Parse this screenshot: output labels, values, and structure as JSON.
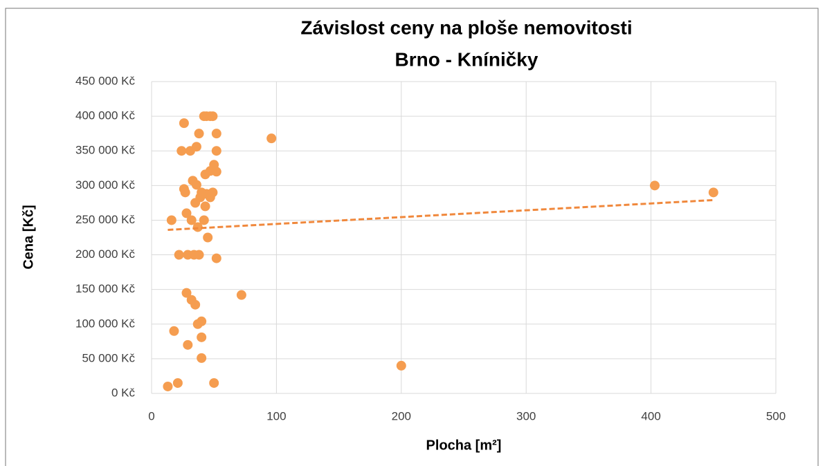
{
  "chart_data": {
    "type": "scatter",
    "title": "Závislost ceny na ploše nemovitosti",
    "subtitle": "Brno - Kníničky",
    "x_label": "Plocha [m²]",
    "y_label": "Cena [Kč]",
    "xlim": [
      0,
      500
    ],
    "xticks": [
      0,
      100,
      200,
      300,
      400,
      500
    ],
    "ylim": [
      0,
      450000
    ],
    "yticks": [
      {
        "value": 0,
        "label": "0 Kč"
      },
      {
        "value": 50000,
        "label": "50 000 Kč"
      },
      {
        "value": 100000,
        "label": "100 000 Kč"
      },
      {
        "value": 150000,
        "label": "150 000 Kč"
      },
      {
        "value": 200000,
        "label": "200 000 Kč"
      },
      {
        "value": 250000,
        "label": "250 000 Kč"
      },
      {
        "value": 300000,
        "label": "300 000 Kč"
      },
      {
        "value": 350000,
        "label": "350 000 Kč"
      },
      {
        "value": 400000,
        "label": "400 000 Kč"
      },
      {
        "value": 450000,
        "label": "450 000 Kč"
      }
    ],
    "grid": true,
    "color": "#f59d50",
    "x": [
      13,
      21,
      18,
      16,
      22,
      26,
      24,
      26,
      27,
      28,
      28,
      29,
      29,
      31,
      32,
      32,
      33,
      34,
      35,
      35,
      36,
      36,
      37,
      38,
      37,
      38,
      39,
      40,
      40,
      40,
      40,
      42,
      42,
      43,
      43,
      44,
      44,
      45,
      47,
      47,
      47,
      49,
      49,
      50,
      50,
      52,
      52,
      52,
      52,
      72,
      96,
      200,
      403,
      450
    ],
    "y": [
      10000,
      15000,
      90000,
      250000,
      200000,
      390000,
      350000,
      295000,
      290000,
      260000,
      145000,
      70000,
      200000,
      350000,
      250000,
      135000,
      307000,
      200000,
      128000,
      275000,
      301000,
      356000,
      240000,
      375000,
      100000,
      200000,
      283000,
      104000,
      81000,
      51000,
      290000,
      250000,
      400000,
      270000,
      316000,
      288000,
      400000,
      225000,
      283000,
      400000,
      321000,
      400000,
      290000,
      330000,
      15000,
      375000,
      350000,
      320000,
      195000,
      142000,
      368000,
      40000,
      300000,
      290000
    ],
    "trendline": {
      "x": [
        13,
        450
      ],
      "y": [
        236000,
        279000
      ],
      "color": "#f0883c",
      "dashed": true
    }
  }
}
